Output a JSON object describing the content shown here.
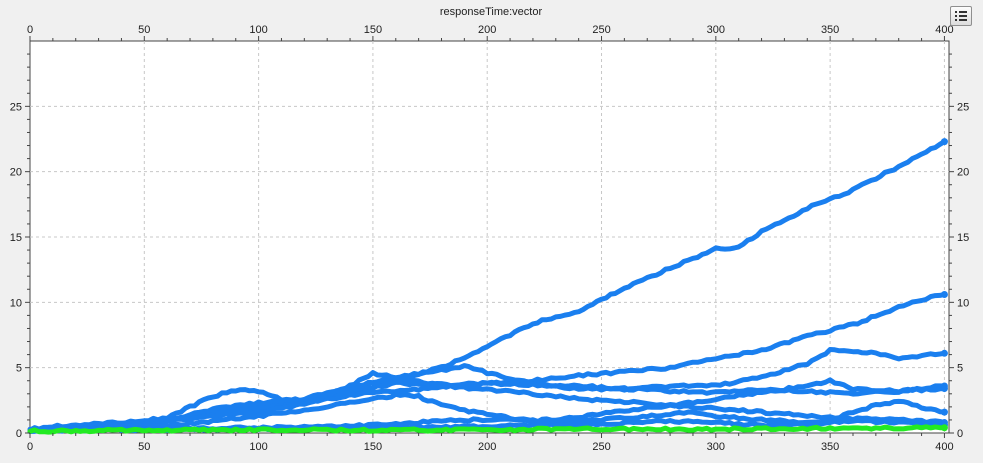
{
  "chart_data": {
    "type": "line",
    "title": "responseTime:vector",
    "xlabel": "",
    "ylabel": "",
    "xlim": [
      0,
      402
    ],
    "ylim": [
      0,
      30
    ],
    "xticks": [
      0,
      50,
      100,
      150,
      200,
      250,
      300,
      350,
      400
    ],
    "yticks": [
      0,
      5,
      10,
      15,
      20,
      25
    ],
    "grid": true,
    "legend": "hidden",
    "series": [
      {
        "color": "#1a7fef",
        "points": [
          [
            0,
            0.3
          ],
          [
            10,
            0.5
          ],
          [
            20,
            0.6
          ],
          [
            40,
            0.8
          ],
          [
            60,
            1.0
          ],
          [
            80,
            1.4
          ],
          [
            100,
            1.9
          ],
          [
            120,
            2.4
          ],
          [
            140,
            3.0
          ],
          [
            160,
            4.0
          ],
          [
            180,
            5.0
          ],
          [
            200,
            6.6
          ],
          [
            220,
            8.4
          ],
          [
            240,
            9.3
          ],
          [
            260,
            11.1
          ],
          [
            280,
            12.6
          ],
          [
            300,
            14.1
          ],
          [
            310,
            14.2
          ],
          [
            320,
            15.4
          ],
          [
            340,
            17.2
          ],
          [
            360,
            18.6
          ],
          [
            380,
            20.4
          ],
          [
            400,
            22.3
          ]
        ]
      },
      {
        "color": "#1a7fef",
        "points": [
          [
            0,
            0.2
          ],
          [
            20,
            0.4
          ],
          [
            50,
            0.7
          ],
          [
            80,
            1.5
          ],
          [
            100,
            2.0
          ],
          [
            120,
            2.5
          ],
          [
            140,
            3.2
          ],
          [
            160,
            3.8
          ],
          [
            180,
            3.7
          ],
          [
            200,
            3.8
          ],
          [
            220,
            4.0
          ],
          [
            240,
            4.4
          ],
          [
            260,
            4.7
          ],
          [
            280,
            5.0
          ],
          [
            300,
            5.7
          ],
          [
            320,
            6.3
          ],
          [
            340,
            7.4
          ],
          [
            360,
            8.3
          ],
          [
            380,
            9.6
          ],
          [
            390,
            10.2
          ],
          [
            400,
            10.6
          ]
        ]
      },
      {
        "color": "#1a7fef",
        "points": [
          [
            0,
            0.2
          ],
          [
            30,
            0.5
          ],
          [
            60,
            1.0
          ],
          [
            80,
            1.8
          ],
          [
            100,
            2.3
          ],
          [
            120,
            2.6
          ],
          [
            140,
            3.5
          ],
          [
            160,
            4.3
          ],
          [
            180,
            4.8
          ],
          [
            190,
            5.1
          ],
          [
            200,
            4.6
          ],
          [
            220,
            3.8
          ],
          [
            240,
            3.4
          ],
          [
            260,
            3.3
          ],
          [
            280,
            3.6
          ],
          [
            300,
            3.6
          ],
          [
            320,
            4.3
          ],
          [
            340,
            5.3
          ],
          [
            350,
            6.3
          ],
          [
            360,
            6.2
          ],
          [
            370,
            6.1
          ],
          [
            380,
            5.7
          ],
          [
            390,
            5.9
          ],
          [
            400,
            6.1
          ]
        ]
      },
      {
        "color": "#1a7fef",
        "points": [
          [
            0,
            0.2
          ],
          [
            30,
            0.4
          ],
          [
            60,
            1.2
          ],
          [
            80,
            2.8
          ],
          [
            90,
            3.3
          ],
          [
            100,
            3.2
          ],
          [
            110,
            2.6
          ],
          [
            120,
            2.3
          ],
          [
            140,
            2.9
          ],
          [
            160,
            3.2
          ],
          [
            180,
            3.5
          ],
          [
            200,
            3.8
          ],
          [
            220,
            3.7
          ],
          [
            240,
            3.6
          ],
          [
            260,
            3.4
          ],
          [
            280,
            3.2
          ],
          [
            300,
            3.1
          ],
          [
            320,
            3.3
          ],
          [
            340,
            3.2
          ],
          [
            360,
            3.0
          ],
          [
            380,
            3.2
          ],
          [
            400,
            3.6
          ]
        ]
      },
      {
        "color": "#1a7fef",
        "points": [
          [
            0,
            0.2
          ],
          [
            40,
            0.5
          ],
          [
            60,
            0.9
          ],
          [
            80,
            1.3
          ],
          [
            100,
            1.6
          ],
          [
            120,
            2.2
          ],
          [
            140,
            3.6
          ],
          [
            150,
            4.6
          ],
          [
            160,
            4.2
          ],
          [
            180,
            3.6
          ],
          [
            200,
            3.3
          ],
          [
            220,
            3.0
          ],
          [
            240,
            2.6
          ],
          [
            260,
            2.4
          ],
          [
            280,
            2.1
          ],
          [
            300,
            1.9
          ],
          [
            320,
            1.6
          ],
          [
            340,
            1.3
          ],
          [
            360,
            1.1
          ],
          [
            380,
            1.0
          ],
          [
            400,
            0.8
          ]
        ]
      },
      {
        "color": "#1a7fef",
        "points": [
          [
            0,
            0.2
          ],
          [
            50,
            0.4
          ],
          [
            80,
            0.9
          ],
          [
            100,
            1.3
          ],
          [
            120,
            1.7
          ],
          [
            140,
            2.3
          ],
          [
            160,
            2.9
          ],
          [
            170,
            2.8
          ],
          [
            180,
            2.1
          ],
          [
            200,
            1.4
          ],
          [
            220,
            0.9
          ],
          [
            240,
            1.2
          ],
          [
            260,
            1.7
          ],
          [
            280,
            2.1
          ],
          [
            300,
            2.6
          ],
          [
            320,
            3.1
          ],
          [
            340,
            3.6
          ],
          [
            350,
            4.0
          ],
          [
            360,
            3.4
          ],
          [
            380,
            3.2
          ],
          [
            400,
            3.4
          ]
        ]
      },
      {
        "color": "#1a7fef",
        "points": [
          [
            0,
            0.2
          ],
          [
            50,
            0.3
          ],
          [
            100,
            0.4
          ],
          [
            150,
            0.6
          ],
          [
            170,
            0.8
          ],
          [
            190,
            1.0
          ],
          [
            210,
            1.0
          ],
          [
            230,
            0.9
          ],
          [
            250,
            1.0
          ],
          [
            270,
            1.3
          ],
          [
            290,
            1.6
          ],
          [
            300,
            1.3
          ],
          [
            320,
            1.0
          ],
          [
            340,
            0.8
          ],
          [
            350,
            0.9
          ],
          [
            360,
            1.6
          ],
          [
            370,
            2.1
          ],
          [
            380,
            2.4
          ],
          [
            390,
            2.0
          ],
          [
            400,
            1.6
          ]
        ]
      },
      {
        "color": "#1a7fef",
        "points": [
          [
            0,
            0.2
          ],
          [
            80,
            0.3
          ],
          [
            150,
            0.4
          ],
          [
            200,
            0.5
          ],
          [
            250,
            0.7
          ],
          [
            280,
            0.9
          ],
          [
            300,
            0.8
          ],
          [
            320,
            0.6
          ],
          [
            340,
            0.7
          ],
          [
            360,
            0.9
          ],
          [
            380,
            0.8
          ],
          [
            400,
            0.6
          ]
        ]
      },
      {
        "color": "#22ea22",
        "points": [
          [
            0,
            0.15
          ],
          [
            50,
            0.2
          ],
          [
            100,
            0.25
          ],
          [
            150,
            0.2
          ],
          [
            200,
            0.25
          ],
          [
            250,
            0.3
          ],
          [
            300,
            0.3
          ],
          [
            350,
            0.35
          ],
          [
            400,
            0.4
          ]
        ]
      }
    ]
  },
  "legend_button": {
    "icon": "legend-list-icon"
  }
}
